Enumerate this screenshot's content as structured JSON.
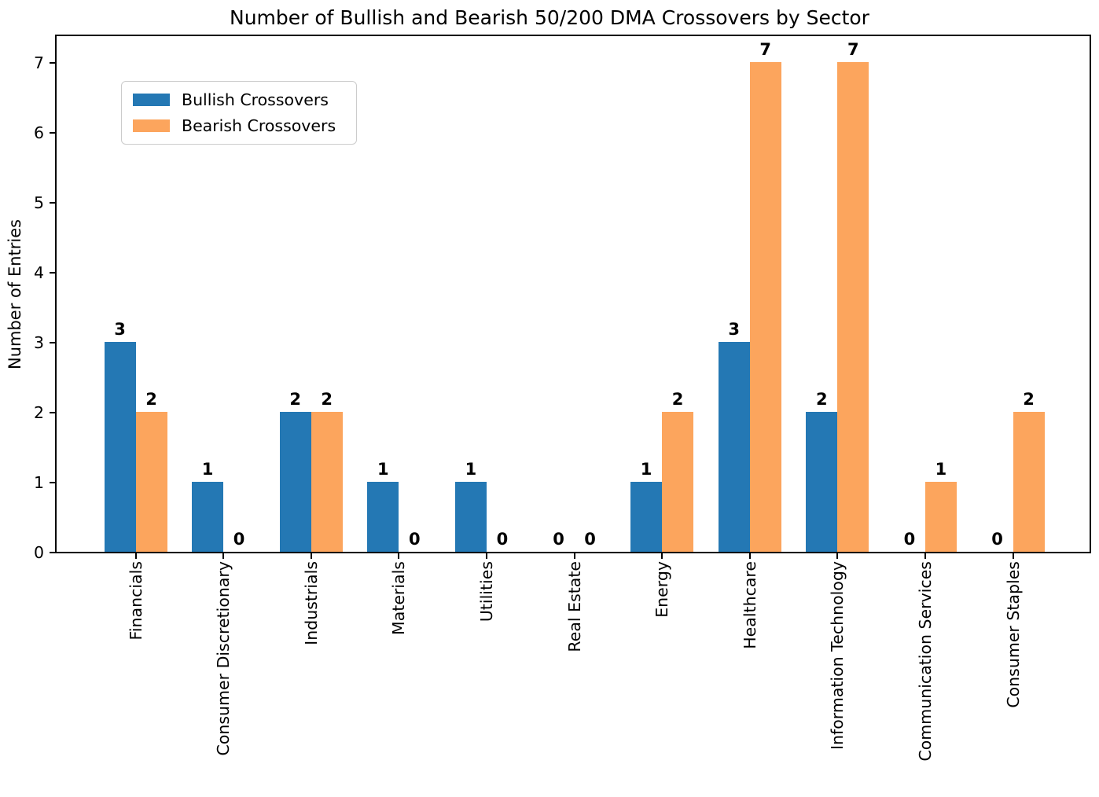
{
  "chart_data": {
    "type": "bar",
    "title": "Number of Bullish and Bearish 50/200 DMA Crossovers by Sector",
    "xlabel": "",
    "ylabel": "Number of Entries",
    "categories": [
      "Financials",
      "Consumer Discretionary",
      "Industrials",
      "Materials",
      "Utilities",
      "Real Estate",
      "Energy",
      "Healthcare",
      "Information Technology",
      "Communication Services",
      "Consumer Staples"
    ],
    "series": [
      {
        "name": "Bullish Crossovers",
        "color": "#2478b4",
        "values": [
          3,
          1,
          2,
          1,
          1,
          0,
          1,
          3,
          2,
          0,
          0
        ]
      },
      {
        "name": "Bearish Crossovers",
        "color": "#fca55d",
        "values": [
          2,
          0,
          2,
          0,
          0,
          0,
          2,
          7,
          7,
          1,
          2
        ]
      }
    ],
    "yticks": [
      0,
      1,
      2,
      3,
      4,
      5,
      6,
      7
    ],
    "ylim": [
      0,
      7.37
    ],
    "grid": false,
    "legend_position": "upper left",
    "bar_value_labels": true
  }
}
